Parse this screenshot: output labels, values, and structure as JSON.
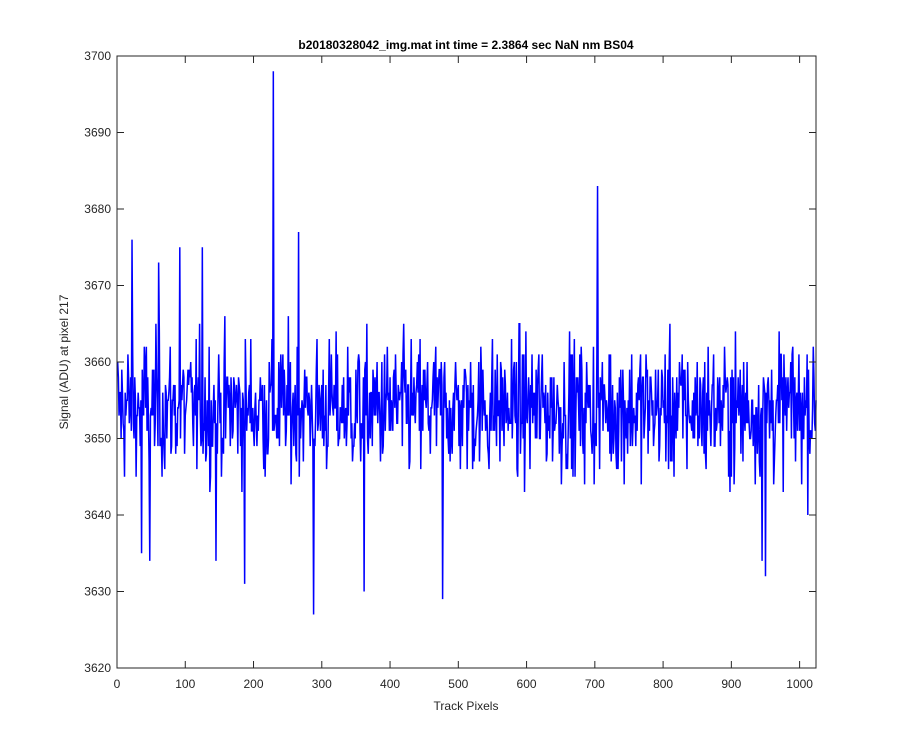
{
  "chart_data": {
    "type": "line",
    "title": "b20180328042_img.mat int time = 2.3864 sec  NaN nm BS04",
    "xlabel": "Track Pixels",
    "ylabel": "Signal (ADU) at pixel 217",
    "xlim": [
      0,
      1024
    ],
    "ylim": [
      3620,
      3700
    ],
    "xticks": [
      0,
      100,
      200,
      300,
      400,
      500,
      600,
      700,
      800,
      900,
      1000
    ],
    "yticks": [
      3620,
      3630,
      3640,
      3650,
      3660,
      3670,
      3680,
      3690,
      3700
    ],
    "grid": false,
    "series": [
      {
        "color": "#0000ff",
        "x_start": 1,
        "x_step": 1,
        "baseline": 3654,
        "noise_amplitude": 7,
        "peaks": [
          {
            "x": 229,
            "y": 3698
          },
          {
            "x": 704,
            "y": 3683
          },
          {
            "x": 22,
            "y": 3676
          },
          {
            "x": 266,
            "y": 3677
          },
          {
            "x": 288,
            "y": 3627
          },
          {
            "x": 187,
            "y": 3631
          },
          {
            "x": 477,
            "y": 3629
          },
          {
            "x": 362,
            "y": 3630
          },
          {
            "x": 950,
            "y": 3632
          },
          {
            "x": 945,
            "y": 3634
          },
          {
            "x": 48,
            "y": 3634
          },
          {
            "x": 36,
            "y": 3635
          },
          {
            "x": 145,
            "y": 3634
          },
          {
            "x": 92,
            "y": 3675
          },
          {
            "x": 125,
            "y": 3675
          },
          {
            "x": 61,
            "y": 3673
          }
        ]
      }
    ]
  }
}
